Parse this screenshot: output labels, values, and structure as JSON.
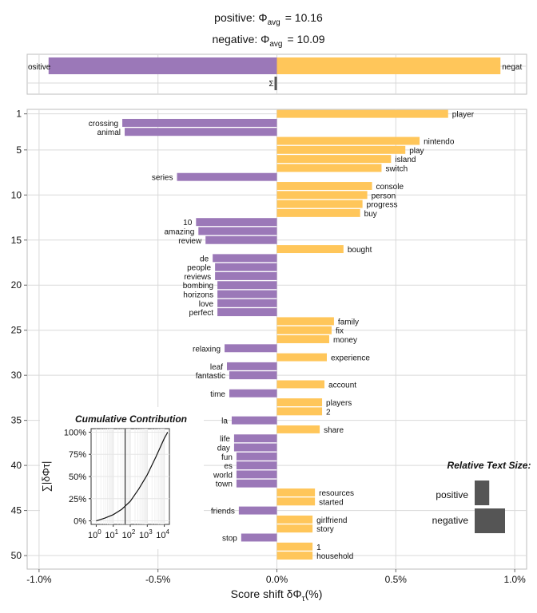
{
  "header": {
    "line1_label": "positive: Φ",
    "line1_sub": "avg",
    "line1_value": "=  10.16",
    "line2_label": "negative: Φ",
    "line2_sub": "avg",
    "line2_value": "=  10.09"
  },
  "colors": {
    "positive_bar": "#FFC65A",
    "negative_bar": "#9B78B8",
    "sum_bar": "#555555",
    "grid": "#d9d9d9",
    "axis_text": "#4d4d4d"
  },
  "summary_panel": {
    "left_label": "ositive",
    "right_label": "negat",
    "sum_label": "Σ",
    "left_value": -0.96,
    "right_value": 0.94,
    "sum_value": -0.01
  },
  "chart_data": {
    "type": "bar",
    "orientation": "horizontal",
    "xlabel": "Score shift δΦ",
    "xlabel_sub": "τ",
    "xlabel_suffix": "(%)",
    "xlim": [
      -1.05,
      1.05
    ],
    "ylim": [
      0.5,
      51.5
    ],
    "x_ticks": [
      -1.0,
      -0.5,
      0.0,
      0.5,
      1.0
    ],
    "x_tick_labels": [
      "-1.0%",
      "-0.5%",
      "0.0%",
      "0.5%",
      "1.0%"
    ],
    "y_ticks": [
      1,
      5,
      10,
      15,
      20,
      25,
      30,
      35,
      40,
      45,
      50
    ],
    "y_tick_labels": [
      "1",
      "5",
      "10",
      "15",
      "20",
      "25",
      "30",
      "35",
      "40",
      "45",
      "50"
    ],
    "grid": true,
    "bars": [
      {
        "rank": 1,
        "word": "player",
        "value": 0.72
      },
      {
        "rank": 2,
        "word": "crossing",
        "value": -0.65
      },
      {
        "rank": 3,
        "word": "animal",
        "value": -0.64
      },
      {
        "rank": 4,
        "word": "nintendo",
        "value": 0.6
      },
      {
        "rank": 5,
        "word": "play",
        "value": 0.54
      },
      {
        "rank": 6,
        "word": "island",
        "value": 0.48
      },
      {
        "rank": 7,
        "word": "switch",
        "value": 0.44
      },
      {
        "rank": 8,
        "word": "series",
        "value": -0.42
      },
      {
        "rank": 9,
        "word": "console",
        "value": 0.4
      },
      {
        "rank": 10,
        "word": "person",
        "value": 0.38
      },
      {
        "rank": 11,
        "word": "progress",
        "value": 0.36
      },
      {
        "rank": 12,
        "word": "buy",
        "value": 0.35
      },
      {
        "rank": 13,
        "word": "10",
        "value": -0.34
      },
      {
        "rank": 14,
        "word": "amazing",
        "value": -0.33
      },
      {
        "rank": 15,
        "word": "review",
        "value": -0.3
      },
      {
        "rank": 16,
        "word": "bought",
        "value": 0.28
      },
      {
        "rank": 17,
        "word": "de",
        "value": -0.27
      },
      {
        "rank": 18,
        "word": "people",
        "value": -0.26
      },
      {
        "rank": 19,
        "word": "reviews",
        "value": -0.26
      },
      {
        "rank": 20,
        "word": "bombing",
        "value": -0.25
      },
      {
        "rank": 21,
        "word": "horizons",
        "value": -0.25
      },
      {
        "rank": 22,
        "word": "love",
        "value": -0.25
      },
      {
        "rank": 23,
        "word": "perfect",
        "value": -0.25
      },
      {
        "rank": 24,
        "word": "family",
        "value": 0.24
      },
      {
        "rank": 25,
        "word": "fix",
        "value": 0.23
      },
      {
        "rank": 26,
        "word": "money",
        "value": 0.22
      },
      {
        "rank": 27,
        "word": "relaxing",
        "value": -0.22
      },
      {
        "rank": 28,
        "word": "experience",
        "value": 0.21
      },
      {
        "rank": 29,
        "word": "leaf",
        "value": -0.21
      },
      {
        "rank": 30,
        "word": "fantastic",
        "value": -0.2
      },
      {
        "rank": 31,
        "word": "account",
        "value": 0.2
      },
      {
        "rank": 32,
        "word": "time",
        "value": -0.2
      },
      {
        "rank": 33,
        "word": "players",
        "value": 0.19
      },
      {
        "rank": 34,
        "word": "2",
        "value": 0.19
      },
      {
        "rank": 35,
        "word": "la",
        "value": -0.19
      },
      {
        "rank": 36,
        "word": "share",
        "value": 0.18
      },
      {
        "rank": 37,
        "word": "life",
        "value": -0.18
      },
      {
        "rank": 38,
        "word": "day",
        "value": -0.18
      },
      {
        "rank": 39,
        "word": "fun",
        "value": -0.17
      },
      {
        "rank": 40,
        "word": "es",
        "value": -0.17
      },
      {
        "rank": 41,
        "word": "world",
        "value": -0.17
      },
      {
        "rank": 42,
        "word": "town",
        "value": -0.17
      },
      {
        "rank": 43,
        "word": "resources",
        "value": 0.16
      },
      {
        "rank": 44,
        "word": "started",
        "value": 0.16
      },
      {
        "rank": 45,
        "word": "friends",
        "value": -0.16
      },
      {
        "rank": 46,
        "word": "girlfriend",
        "value": 0.15
      },
      {
        "rank": 47,
        "word": "story",
        "value": 0.15
      },
      {
        "rank": 48,
        "word": "stop",
        "value": -0.15
      },
      {
        "rank": 49,
        "word": "1",
        "value": 0.15
      },
      {
        "rank": 50,
        "word": "household",
        "value": 0.15
      }
    ]
  },
  "inset": {
    "title": "Cumulative Contribution",
    "ylabel": "∑|δΦτ|",
    "y_tick_labels": [
      "100%",
      "75%",
      "50%",
      "25%",
      "0%"
    ],
    "y_ticks": [
      1.0,
      0.75,
      0.5,
      0.25,
      0.0
    ],
    "x_tick_exponents": [
      "0",
      "1",
      "2",
      "3",
      "4"
    ],
    "x_tick_base": "10",
    "vline_log10": 1.7,
    "curve_points": [
      [
        0,
        0.0
      ],
      [
        0.5,
        0.03
      ],
      [
        1.0,
        0.07
      ],
      [
        1.5,
        0.13
      ],
      [
        2.0,
        0.22
      ],
      [
        2.5,
        0.36
      ],
      [
        3.0,
        0.52
      ],
      [
        3.5,
        0.72
      ],
      [
        4.0,
        0.93
      ],
      [
        4.2,
        1.0
      ]
    ]
  },
  "size_legend": {
    "title": "Relative Text Size:",
    "items": [
      {
        "label": "positive",
        "value": 0.48
      },
      {
        "label": "negative",
        "value": 1.0
      }
    ]
  }
}
